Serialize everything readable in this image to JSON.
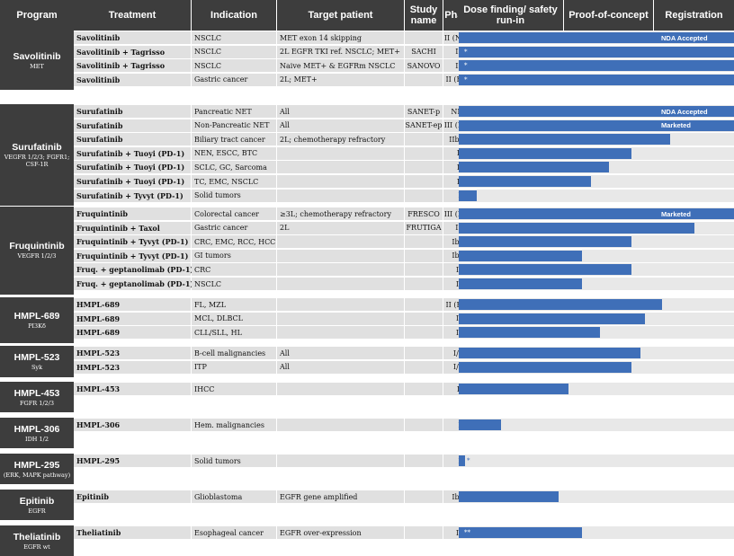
{
  "headers": {
    "program": "Program",
    "treatment": "Treatment",
    "indication": "Indication",
    "target_patient": "Target patient",
    "study_name": "Study name",
    "phase": "Phase",
    "dose_finding": "Dose finding/ safety run-in",
    "proof_of_concept": "Proof-of-concept",
    "registration": "Registration"
  },
  "chart_data": {
    "type": "bar",
    "orientation": "horizontal",
    "stages": [
      "Dose finding/ safety run-in",
      "Proof-of-concept",
      "Registration"
    ],
    "value_unit": "stage progress (0 = start of dose finding, 3 = end of registration)",
    "groups": [
      {
        "program": "Savolitinib",
        "target": "MET",
        "rows": [
          {
            "treatment": "Savolitinib",
            "indication": "NSCLC",
            "target_patient": "MET exon 14 skipping",
            "study": "",
            "phase": "II (NDA)",
            "progress": 3.0,
            "label": "NDA Accepted",
            "note": ""
          },
          {
            "treatment": "Savolitinib + Tagrisso",
            "indication": "NSCLC",
            "target_patient": "2L EGFR TKI ref. NSCLC; MET+",
            "study": "SACHI",
            "phase": "III",
            "progress": 3.0,
            "label": "",
            "note": "*"
          },
          {
            "treatment": "Savolitinib + Tagrisso",
            "indication": "NSCLC",
            "target_patient": "Naive MET+ & EGFRm NSCLC",
            "study": "SANOVO",
            "phase": "III",
            "progress": 3.0,
            "label": "",
            "note": "*"
          },
          {
            "treatment": "Savolitinib",
            "indication": "Gastric cancer",
            "target_patient": "2L; MET+",
            "study": "",
            "phase": "II (Reg)",
            "progress": 3.0,
            "label": "",
            "note": "*"
          }
        ]
      },
      {
        "program": "Surufatinib",
        "target": "VEGFR 1/2/3; FGFR1; CSF-1R",
        "rows": [
          {
            "treatment": "Surufatinib",
            "indication": "Pancreatic NET",
            "target_patient": "All",
            "study": "SANET-p",
            "phase": "NDA",
            "progress": 3.0,
            "label": "NDA Accepted",
            "note": ""
          },
          {
            "treatment": "Surufatinib",
            "indication": "Non-Pancreatic NET",
            "target_patient": "All",
            "study": "SANET-ep",
            "phase": "III (Mkt)",
            "progress": 3.0,
            "label": "Marketed",
            "note": ""
          },
          {
            "treatment": "Surufatinib",
            "indication": "Biliary tract cancer",
            "target_patient": "2L; chemotherapy refractory",
            "study": "",
            "phase": "IIb/III",
            "progress": 2.2,
            "label": "",
            "note": ""
          },
          {
            "treatment": "Surufatinib + Tuoyi (PD-1)",
            "indication": "NEN, ESCC, BTC",
            "target_patient": "",
            "study": "",
            "phase": "II",
            "progress": 1.75,
            "label": "",
            "note": ""
          },
          {
            "treatment": "Surufatinib + Tuoyi (PD-1)",
            "indication": "SCLC, GC, Sarcoma",
            "target_patient": "",
            "study": "",
            "phase": "II",
            "progress": 1.5,
            "label": "",
            "note": ""
          },
          {
            "treatment": "Surufatinib + Tuoyi (PD-1)",
            "indication": "TC, EMC, NSCLC",
            "target_patient": "",
            "study": "",
            "phase": "II",
            "progress": 1.3,
            "label": "",
            "note": ""
          },
          {
            "treatment": "Surufatinib + Tyvyt (PD-1)",
            "indication": "Solid tumors",
            "target_patient": "",
            "study": "",
            "phase": "I",
            "progress": 0.17,
            "label": "",
            "note": ""
          }
        ]
      },
      {
        "program": "Fruquintinib",
        "target": "VEGFR 1/2/3",
        "rows": [
          {
            "treatment": "Fruquintinib",
            "indication": "Colorectal cancer",
            "target_patient": "≥3L; chemotherapy refractory",
            "study": "FRESCO",
            "phase": "III (Mkt)",
            "progress": 3.0,
            "label": "Marketed",
            "note": ""
          },
          {
            "treatment": "Fruquintinib + Taxol",
            "indication": "Gastric cancer",
            "target_patient": "2L",
            "study": "FRUTIGA",
            "phase": "III",
            "progress": 2.5,
            "label": "",
            "note": ""
          },
          {
            "treatment": "Fruquintinib + Tyvyt (PD-1)",
            "indication": "CRC, EMC, RCC, HCC",
            "target_patient": "",
            "study": "",
            "phase": "Ib/II",
            "progress": 1.75,
            "label": "",
            "note": ""
          },
          {
            "treatment": "Fruquintinib + Tyvyt (PD-1)",
            "indication": "GI tumors",
            "target_patient": "",
            "study": "",
            "phase": "Ib/II",
            "progress": 1.2,
            "label": "",
            "note": ""
          },
          {
            "treatment": "Fruq. + geptanolimab (PD-1)",
            "indication": "CRC",
            "target_patient": "",
            "study": "",
            "phase": "Ib",
            "progress": 1.75,
            "label": "",
            "note": ""
          },
          {
            "treatment": "Fruq. + geptanolimab (PD-1)",
            "indication": "NSCLC",
            "target_patient": "",
            "study": "",
            "phase": "Ib",
            "progress": 1.2,
            "label": "",
            "note": ""
          }
        ]
      },
      {
        "program": "HMPL-689",
        "target": "PI3Kδ",
        "rows": [
          {
            "treatment": "HMPL-689",
            "indication": "FL, MZL",
            "target_patient": "",
            "study": "",
            "phase": "II (Reg)",
            "progress": 2.1,
            "label": "",
            "note": ""
          },
          {
            "treatment": "HMPL-689",
            "indication": "MCL, DLBCL",
            "target_patient": "",
            "study": "",
            "phase": "Ib",
            "progress": 1.9,
            "label": "",
            "note": ""
          },
          {
            "treatment": "HMPL-689",
            "indication": "CLL/SLL, HL",
            "target_patient": "",
            "study": "",
            "phase": "Ib",
            "progress": 1.4,
            "label": "",
            "note": ""
          }
        ]
      },
      {
        "program": "HMPL-523",
        "target": "Syk",
        "rows": [
          {
            "treatment": "HMPL-523",
            "indication": "B-cell malignancies",
            "target_patient": "All",
            "study": "",
            "phase": "I/Ib",
            "progress": 1.85,
            "label": "",
            "note": ""
          },
          {
            "treatment": "HMPL-523",
            "indication": "ITP",
            "target_patient": "All",
            "study": "",
            "phase": "I/Ib",
            "progress": 1.75,
            "label": "",
            "note": ""
          }
        ]
      },
      {
        "program": "HMPL-453",
        "target": "FGFR 1/2/3",
        "rows": [
          {
            "treatment": "HMPL-453",
            "indication": "IHCC",
            "target_patient": "",
            "study": "",
            "phase": "II",
            "progress": 1.05,
            "label": "",
            "note": ""
          }
        ]
      },
      {
        "program": "HMPL-306",
        "target": "IDH 1/2",
        "rows": [
          {
            "treatment": "HMPL-306",
            "indication": "Hem. malignancies",
            "target_patient": "",
            "study": "",
            "phase": "I",
            "progress": 0.4,
            "label": "",
            "note": ""
          }
        ]
      },
      {
        "program": "HMPL-295",
        "target": "(ERK, MAPK pathway)",
        "rows": [
          {
            "treatment": "HMPL-295",
            "indication": "Solid tumors",
            "target_patient": "",
            "study": "",
            "phase": "I",
            "progress": 0.06,
            "label": "",
            "note": "*"
          }
        ]
      },
      {
        "program": "Epitinib",
        "target": "EGFR",
        "rows": [
          {
            "treatment": "Epitinib",
            "indication": "Glioblastoma",
            "target_patient": "EGFR gene amplified",
            "study": "",
            "phase": "Ib/II",
            "progress": 0.95,
            "label": "",
            "note": ""
          }
        ]
      },
      {
        "program": "Theliatinib",
        "target": "EGFR wt",
        "rows": [
          {
            "treatment": "Theliatinib",
            "indication": "Esophageal cancer",
            "target_patient": "EGFR over-expression",
            "study": "",
            "phase": "Ib",
            "progress": 1.2,
            "label": "",
            "note": "**"
          }
        ]
      }
    ]
  }
}
